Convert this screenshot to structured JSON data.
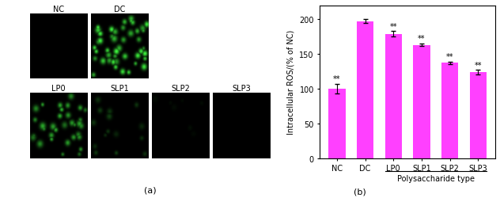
{
  "chart_data": {
    "type": "bar",
    "categories": [
      "NC",
      "DC",
      "LP0",
      "SLP1",
      "SLP2",
      "SLP3"
    ],
    "values": [
      100,
      197,
      179,
      163,
      137,
      124
    ],
    "errors": [
      7,
      3,
      4,
      2,
      2,
      3
    ],
    "annotations": [
      "**",
      null,
      "**",
      "**",
      "**",
      "**"
    ],
    "color": "#ff40ff",
    "y_label": "Intracellular ROS/(% of NC)",
    "group_label": {
      "text": "Polysaccharide type",
      "from": "LP0",
      "to": "SLP3"
    },
    "ylim": [
      0,
      220
    ],
    "yticks": [
      0,
      50,
      100,
      150,
      200
    ],
    "grid": false,
    "panel_label": "(b)"
  },
  "image_panels": {
    "panel_label": "(a)",
    "top_row": [
      "NC",
      "DC"
    ],
    "bottom_row": [
      "LP0",
      "SLP1",
      "SLP2",
      "SLP3"
    ]
  }
}
